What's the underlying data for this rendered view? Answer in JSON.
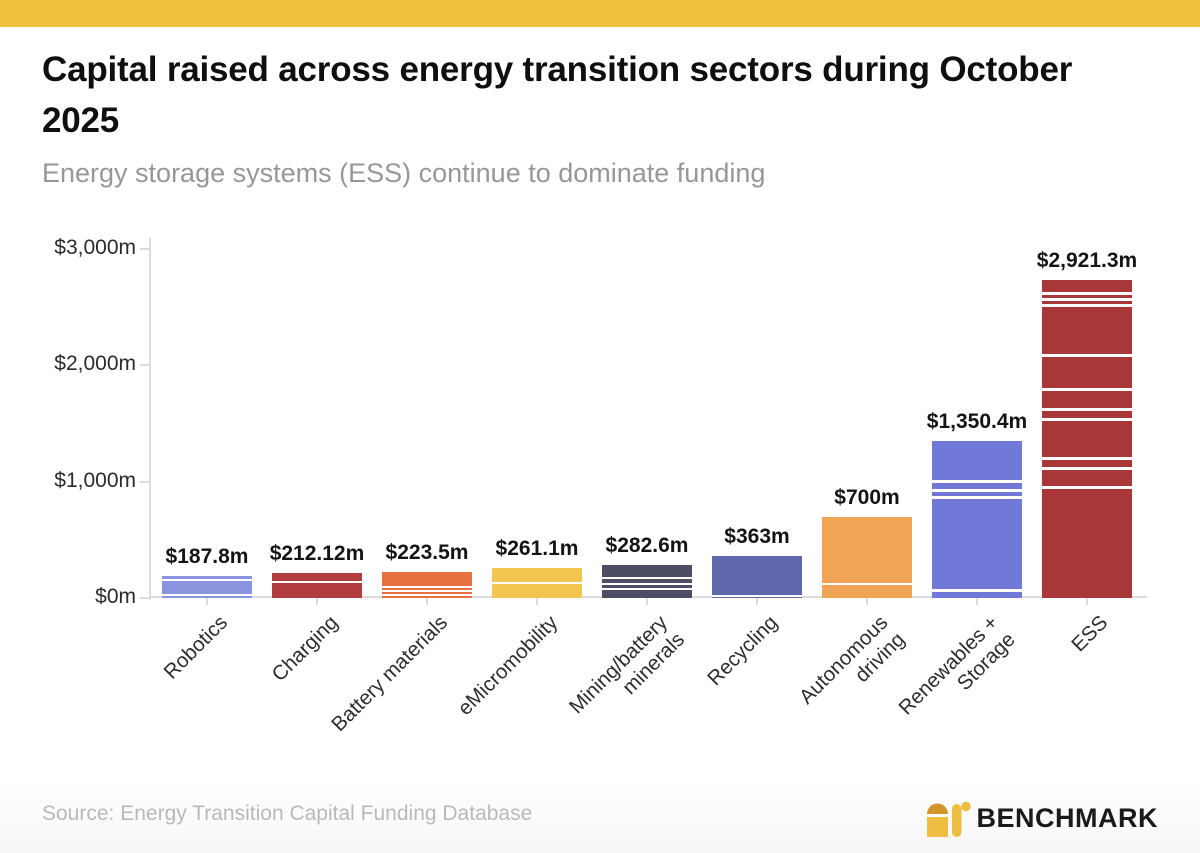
{
  "header": {
    "title": "Capital raised across energy transition sectors during October 2025",
    "subtitle": "Energy storage systems (ESS) continue to dominate funding"
  },
  "chart_data": {
    "type": "bar",
    "stacked": true,
    "title": "Capital raised across energy transition sectors during October 2025",
    "xlabel": "",
    "ylabel": "",
    "ylim": [
      0,
      3000
    ],
    "grid": false,
    "legend": "none",
    "yticks": [
      {
        "label": "$0m",
        "value": 0
      },
      {
        "label": "$1,000m",
        "value": 1000
      },
      {
        "label": "$2,000m",
        "value": 2000
      },
      {
        "label": "$3,000m",
        "value": 3000
      }
    ],
    "categories": [
      "Robotics",
      "Charging",
      "Battery materials",
      "eMicromobility",
      "Mining/battery\nminerals",
      "Recycling",
      "Autonomous\ndriving",
      "Renewables +\nStorage",
      "ESS"
    ],
    "values": [
      187.8,
      212.12,
      223.5,
      261.1,
      282.6,
      363,
      700,
      1350.4,
      2921.3
    ],
    "value_labels": [
      "$187.8m",
      "$212.12m",
      "$223.5m",
      "$261.1m",
      "$282.6m",
      "$363m",
      "$700m",
      "$1,350.4m",
      "$2,921.3m"
    ],
    "bar_colors": [
      "#8A93DE",
      "#B23C3E",
      "#E4713F",
      "#F2C64F",
      "#4D4E63",
      "#5F67AB",
      "#F0A455",
      "#7078D8",
      "#A93639"
    ],
    "segment_fractions": [
      [
        0.18,
        0.68,
        0.14
      ],
      [
        0.36,
        0.64
      ],
      [
        0.7,
        0.1,
        0.08,
        0.12
      ],
      [
        0.52,
        0.48
      ],
      [
        0.45,
        0.13,
        0.13,
        0.29
      ],
      [
        0.97,
        0.03
      ],
      [
        0.84,
        0.16
      ],
      [
        0.27,
        0.04,
        0.03,
        0.62,
        0.04
      ],
      [
        0.042,
        0.01,
        0.01,
        0.163,
        0.108,
        0.059,
        0.023,
        0.127,
        0.023,
        0.056,
        0.379
      ]
    ]
  },
  "colors": {
    "banner": "#EEC23F",
    "axis": "#DCDCDC",
    "logo_dome": "#D2952B",
    "logo_gold": "#EFBD41"
  },
  "footer": {
    "source": "Source: Energy Transition Capital Funding Database",
    "brand": "BENCHMARK"
  }
}
